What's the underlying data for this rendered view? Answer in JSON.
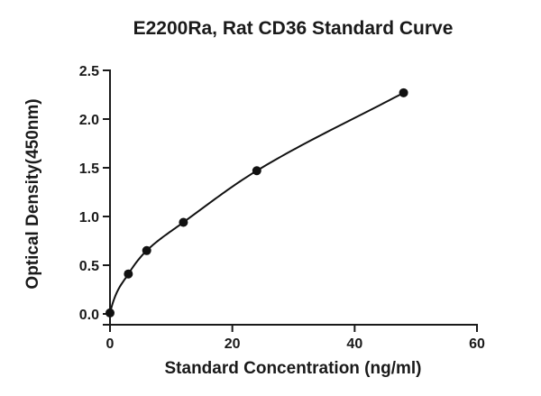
{
  "chart_data": {
    "type": "scatter",
    "title": "E2200Ra, Rat CD36 Standard Curve",
    "xlabel": "Standard Concentration (ng/ml)",
    "ylabel": "Optical Density(450nm)",
    "xlim": [
      0,
      60
    ],
    "ylim": [
      0,
      2.5
    ],
    "x_ticks": [
      "0",
      "20",
      "40",
      "60"
    ],
    "y_ticks": [
      "0.0",
      "0.5",
      "1.0",
      "1.5",
      "2.0",
      "2.5"
    ],
    "grid": false,
    "legend": "none",
    "series": [
      {
        "x": [
          0,
          3,
          6,
          12,
          24,
          48
        ],
        "y": [
          0.01,
          0.41,
          0.65,
          0.94,
          1.47,
          2.27
        ],
        "marker": "circle",
        "fit_line": true
      }
    ],
    "colors": {
      "ink": "#111111"
    }
  }
}
